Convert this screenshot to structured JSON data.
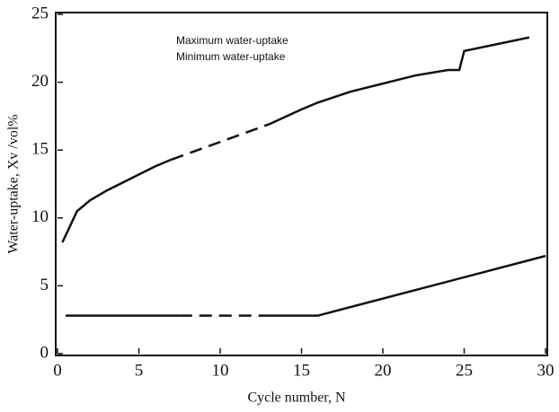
{
  "chart_data": {
    "type": "line",
    "xlabel": "Cycle number, N",
    "ylabel": "Water-uptake, Xv /vol%",
    "xlim": [
      0,
      30
    ],
    "xticks": [
      0,
      5,
      10,
      15,
      20,
      25,
      30
    ],
    "ylim": [
      0,
      25
    ],
    "yticks": [
      0,
      5,
      10,
      15,
      20,
      25
    ],
    "grid": false,
    "legend": "upper left",
    "series": [
      {
        "name": "Maximum water-uptake",
        "color": "#111111",
        "x": [
          0.3,
          1.2,
          2,
          3,
          4,
          5,
          6,
          7,
          10,
          13,
          15,
          16,
          18,
          20,
          22,
          24,
          24.7,
          25,
          27,
          29
        ],
        "values": [
          8.2,
          10.5,
          11.3,
          12.0,
          12.6,
          13.2,
          13.8,
          14.3,
          15.6,
          16.9,
          18.0,
          18.5,
          19.3,
          19.9,
          20.5,
          20.9,
          20.9,
          22.3,
          22.8,
          23.3
        ],
        "dashed_x": [
          7,
          13
        ]
      },
      {
        "name": "Minimum water-uptake",
        "color": "#111111",
        "x": [
          0.5,
          7.5,
          13,
          16,
          30
        ],
        "values": [
          2.8,
          2.8,
          2.8,
          2.8,
          7.2
        ],
        "dashed_x": [
          7.5,
          13
        ]
      }
    ]
  }
}
